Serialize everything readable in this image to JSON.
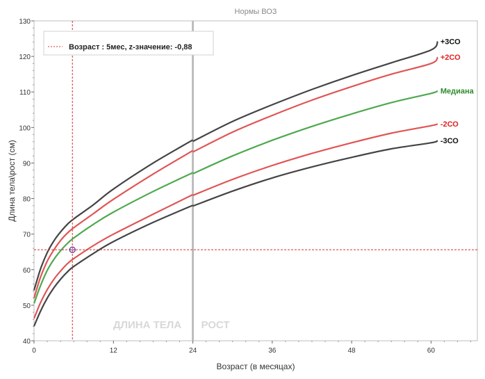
{
  "chart_data": {
    "type": "line",
    "title": "Нормы ВОЗ",
    "xlabel": "Возраст (в месяцах)",
    "ylabel": "Длина тела\\рост (см)",
    "xlim": [
      0,
      67
    ],
    "ylim": [
      40,
      130
    ],
    "x_ticks": [
      0,
      12,
      24,
      36,
      48,
      60
    ],
    "y_ticks": [
      40,
      50,
      60,
      70,
      80,
      90,
      100,
      110,
      120,
      130
    ],
    "grid": false,
    "legend": {
      "position": "top-left",
      "text": "Возраст : 5мес, z-значение: -0,88"
    },
    "zones": [
      "ДЛИНА ТЕЛА",
      "РОСТ"
    ],
    "zone_boundary_x": 24,
    "marker": {
      "x": 5.8,
      "y": 65.6
    },
    "series": [
      {
        "name": "+3СО",
        "color": "#444444",
        "points": [
          [
            0,
            54.2
          ],
          [
            1,
            60.3
          ],
          [
            2,
            64.8
          ],
          [
            3,
            68.1
          ],
          [
            4,
            70.6
          ],
          [
            5,
            72.7
          ],
          [
            6,
            74.3
          ],
          [
            9,
            78.3
          ],
          [
            12,
            82.7
          ],
          [
            18,
            90.0
          ],
          [
            24,
            96.5
          ],
          [
            24,
            96.1
          ],
          [
            30,
            101.7
          ],
          [
            36,
            106.4
          ],
          [
            42,
            110.7
          ],
          [
            48,
            114.6
          ],
          [
            54,
            118.2
          ],
          [
            60,
            121.8
          ],
          [
            61,
            124.2
          ]
        ]
      },
      {
        "name": "+2СО",
        "color": "#e05555",
        "points": [
          [
            0,
            52.0
          ],
          [
            1,
            58.0
          ],
          [
            2,
            62.4
          ],
          [
            3,
            65.6
          ],
          [
            4,
            68.2
          ],
          [
            5,
            70.2
          ],
          [
            6,
            71.8
          ],
          [
            9,
            75.8
          ],
          [
            12,
            79.8
          ],
          [
            18,
            86.9
          ],
          [
            24,
            93.5
          ],
          [
            24,
            93.1
          ],
          [
            30,
            98.7
          ],
          [
            36,
            103.4
          ],
          [
            42,
            107.7
          ],
          [
            48,
            111.5
          ],
          [
            54,
            115.0
          ],
          [
            60,
            118.0
          ],
          [
            61,
            119.8
          ]
        ]
      },
      {
        "name": "Медиана",
        "color": "#4ea84e",
        "points": [
          [
            0,
            50.5
          ],
          [
            1,
            55.6
          ],
          [
            2,
            59.8
          ],
          [
            3,
            62.9
          ],
          [
            4,
            65.3
          ],
          [
            5,
            67.3
          ],
          [
            6,
            68.9
          ],
          [
            9,
            72.8
          ],
          [
            12,
            76.2
          ],
          [
            18,
            82.0
          ],
          [
            24,
            87.3
          ],
          [
            24,
            87.0
          ],
          [
            30,
            92.0
          ],
          [
            36,
            96.4
          ],
          [
            42,
            100.3
          ],
          [
            48,
            103.8
          ],
          [
            54,
            107.0
          ],
          [
            60,
            109.6
          ],
          [
            61,
            110.3
          ]
        ]
      },
      {
        "name": "-2СО",
        "color": "#e05555",
        "points": [
          [
            0,
            46.3
          ],
          [
            1,
            50.8
          ],
          [
            2,
            54.4
          ],
          [
            3,
            57.3
          ],
          [
            4,
            59.6
          ],
          [
            5,
            61.6
          ],
          [
            6,
            63.1
          ],
          [
            9,
            66.8
          ],
          [
            12,
            70.0
          ],
          [
            18,
            75.6
          ],
          [
            24,
            81.1
          ],
          [
            24,
            80.9
          ],
          [
            30,
            85.4
          ],
          [
            36,
            89.3
          ],
          [
            42,
            92.7
          ],
          [
            48,
            95.7
          ],
          [
            54,
            98.4
          ],
          [
            60,
            100.5
          ],
          [
            61,
            101.0
          ]
        ]
      },
      {
        "name": "-3СО",
        "color": "#444444",
        "points": [
          [
            0,
            44.1
          ],
          [
            1,
            48.4
          ],
          [
            2,
            52.0
          ],
          [
            3,
            54.9
          ],
          [
            4,
            57.3
          ],
          [
            5,
            59.3
          ],
          [
            6,
            60.9
          ],
          [
            9,
            64.6
          ],
          [
            12,
            67.9
          ],
          [
            18,
            73.3
          ],
          [
            24,
            78.1
          ],
          [
            24,
            77.9
          ],
          [
            30,
            82.1
          ],
          [
            36,
            85.8
          ],
          [
            42,
            88.9
          ],
          [
            48,
            91.6
          ],
          [
            54,
            94.0
          ],
          [
            60,
            95.7
          ],
          [
            61,
            96.3
          ]
        ]
      }
    ]
  }
}
